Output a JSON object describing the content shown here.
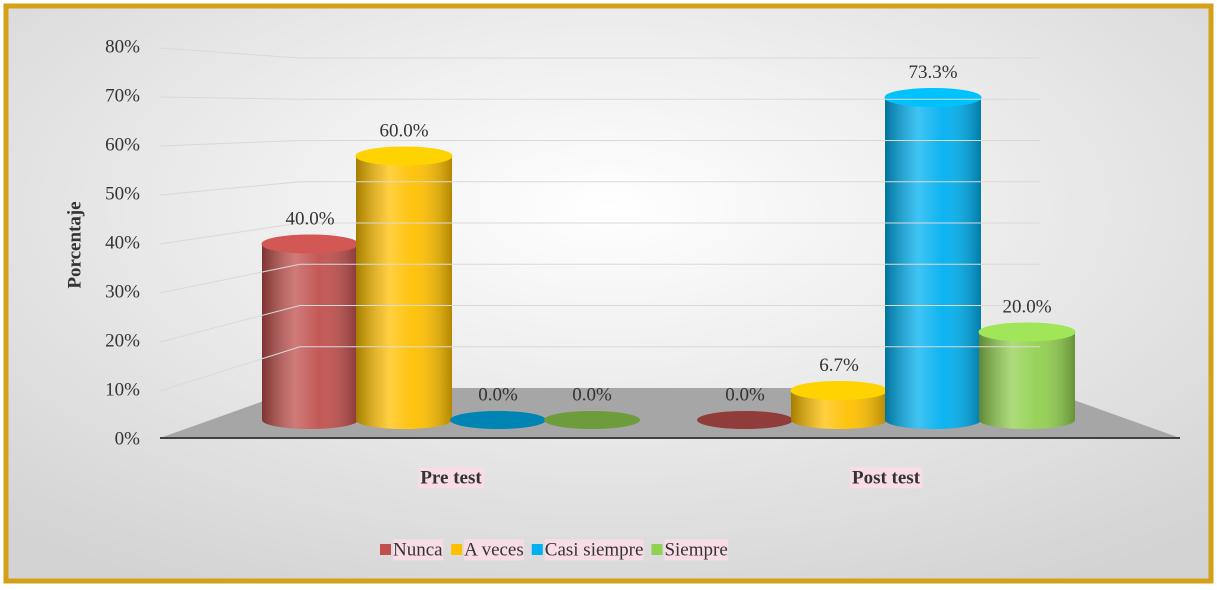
{
  "chart_data": {
    "type": "bar3d",
    "y_label": "Porcentaje",
    "categories": [
      "Pre test",
      "Post test"
    ],
    "series": [
      {
        "name": "Nunca",
        "color": "#c0504d",
        "values": [
          40,
          0
        ],
        "value_labels": [
          "40.0%",
          "0.0%"
        ]
      },
      {
        "name": "A veces",
        "color": "#ffc000",
        "values": [
          60,
          6.7
        ],
        "value_labels": [
          "60.0%",
          "6.7%"
        ]
      },
      {
        "name": "Casi siempre",
        "color": "#00b0f0",
        "values": [
          0,
          73.3
        ],
        "value_labels": [
          "0.0%",
          "73.3%"
        ]
      },
      {
        "name": "Siempre",
        "color": "#92d050",
        "values": [
          0,
          20
        ],
        "value_labels": [
          "0.0%",
          "20.0%"
        ]
      }
    ],
    "ylim": [
      0,
      80
    ],
    "yticks": [
      {
        "value": 0,
        "label": "0%"
      },
      {
        "value": 10,
        "label": "10%"
      },
      {
        "value": 20,
        "label": "20%"
      },
      {
        "value": 30,
        "label": "30%"
      },
      {
        "value": 40,
        "label": "40%"
      },
      {
        "value": 50,
        "label": "50%"
      },
      {
        "value": 60,
        "label": "60%"
      },
      {
        "value": 70,
        "label": "70%"
      },
      {
        "value": 80,
        "label": "80%"
      }
    ],
    "grid": true,
    "legend": "bottom"
  }
}
